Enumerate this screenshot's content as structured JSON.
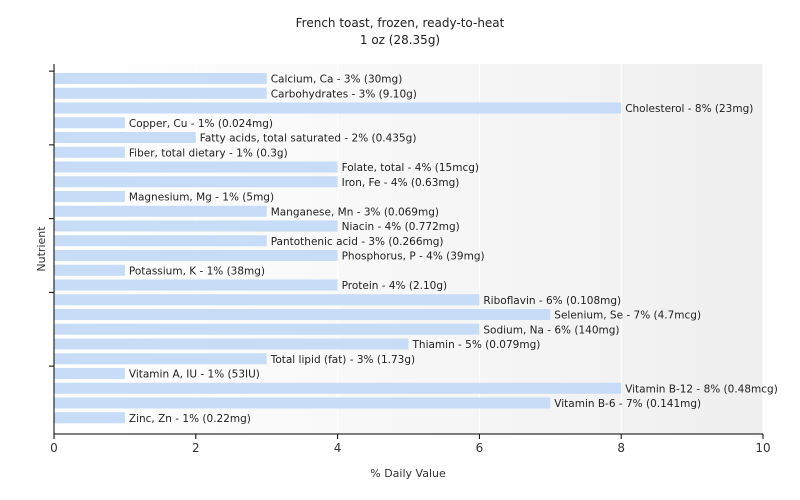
{
  "chart_data": {
    "type": "bar",
    "orientation": "horizontal",
    "title": "French toast, frozen, ready-to-heat",
    "subtitle": "1 oz (28.35g)",
    "xlabel": "% Daily Value",
    "ylabel": "Nutrient",
    "xlim": [
      0,
      10
    ],
    "xticks": [
      0,
      2,
      4,
      6,
      8,
      10
    ],
    "grid": true,
    "bar_color": "#c6dcf7",
    "categories": [
      "Calcium, Ca",
      "Carbohydrates",
      "Cholesterol",
      "Copper, Cu",
      "Fatty acids, total saturated",
      "Fiber, total dietary",
      "Folate, total",
      "Iron, Fe",
      "Magnesium, Mg",
      "Manganese, Mn",
      "Niacin",
      "Pantothenic acid",
      "Phosphorus, P",
      "Potassium, K",
      "Protein",
      "Riboflavin",
      "Selenium, Se",
      "Sodium, Na",
      "Thiamin",
      "Total lipid (fat)",
      "Vitamin A, IU",
      "Vitamin B-12",
      "Vitamin B-6",
      "Zinc, Zn"
    ],
    "values": [
      3,
      3,
      8,
      1,
      2,
      1,
      4,
      4,
      1,
      3,
      4,
      3,
      4,
      1,
      4,
      6,
      7,
      6,
      5,
      3,
      1,
      8,
      7,
      1
    ],
    "labels": [
      "Calcium, Ca - 3% (30mg)",
      "Carbohydrates - 3% (9.10g)",
      "Cholesterol - 8% (23mg)",
      "Copper, Cu - 1% (0.024mg)",
      "Fatty acids, total saturated - 2% (0.435g)",
      "Fiber, total dietary - 1% (0.3g)",
      "Folate, total - 4% (15mcg)",
      "Iron, Fe - 4% (0.63mg)",
      "Magnesium, Mg - 1% (5mg)",
      "Manganese, Mn - 3% (0.069mg)",
      "Niacin - 4% (0.772mg)",
      "Pantothenic acid - 3% (0.266mg)",
      "Phosphorus, P - 4% (39mg)",
      "Potassium, K - 1% (38mg)",
      "Protein - 4% (2.10g)",
      "Riboflavin - 6% (0.108mg)",
      "Selenium, Se - 7% (4.7mcg)",
      "Sodium, Na - 6% (140mg)",
      "Thiamin - 5% (0.079mg)",
      "Total lipid (fat) - 3% (1.73g)",
      "Vitamin A, IU - 1% (53IU)",
      "Vitamin B-12 - 8% (0.48mcg)",
      "Vitamin B-6 - 7% (0.141mg)",
      "Zinc, Zn - 1% (0.22mg)"
    ]
  }
}
